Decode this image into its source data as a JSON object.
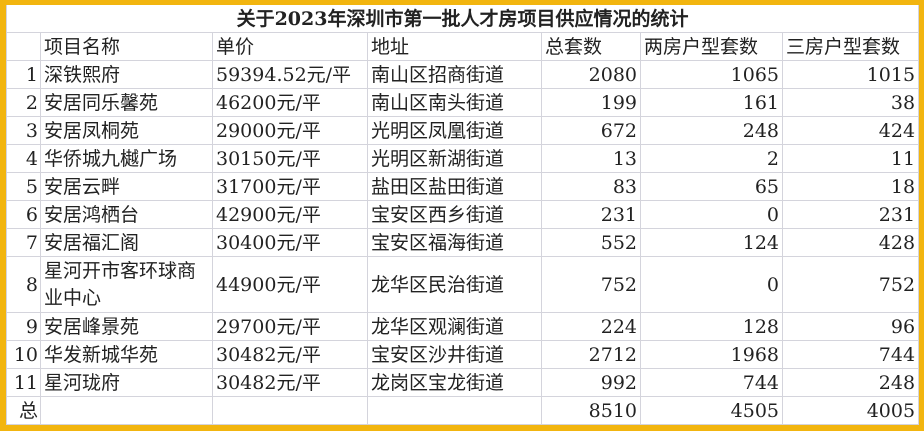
{
  "title": "关于2023年深圳市第一批人才房项目供应情况的统计",
  "headers": [
    "",
    "项目名称",
    "单价",
    "地址",
    "总套数",
    "两房户型套数",
    "三房户型套数"
  ],
  "rows": [
    {
      "no": "1",
      "name": "深铁熙府",
      "price": "59394.52元/平",
      "address": "南山区招商街道",
      "total": "2080",
      "two": "1065",
      "three": "1015"
    },
    {
      "no": "2",
      "name": "安居同乐馨苑",
      "price": "46200元/平",
      "address": "南山区南头街道",
      "total": "199",
      "two": "161",
      "three": "38"
    },
    {
      "no": "3",
      "name": "安居凤桐苑",
      "price": "29000元/平",
      "address": "光明区凤凰街道",
      "total": "672",
      "two": "248",
      "three": "424"
    },
    {
      "no": "4",
      "name": "华侨城九樾广场",
      "price": "30150元/平",
      "address": "光明区新湖街道",
      "total": "13",
      "two": "2",
      "three": "11"
    },
    {
      "no": "5",
      "name": "安居云畔",
      "price": "31700元/平",
      "address": "盐田区盐田街道",
      "total": "83",
      "two": "65",
      "three": "18"
    },
    {
      "no": "6",
      "name": "安居鸿栖台",
      "price": "42900元/平",
      "address": "宝安区西乡街道",
      "total": "231",
      "two": "0",
      "three": "231"
    },
    {
      "no": "7",
      "name": "安居福汇阁",
      "price": "30400元/平",
      "address": "宝安区福海街道",
      "total": "552",
      "two": "124",
      "three": "428"
    },
    {
      "no": "8",
      "name": "星河开市客环球商业中心",
      "price": "44900元/平",
      "address": "龙华区民治街道",
      "total": "752",
      "two": "0",
      "three": "752"
    },
    {
      "no": "9",
      "name": "安居峰景苑",
      "price": "29700元/平",
      "address": "龙华区观澜街道",
      "total": "224",
      "two": "128",
      "three": "96"
    },
    {
      "no": "10",
      "name": "华发新城华苑",
      "price": "30482元/平",
      "address": "宝安区沙井街道",
      "total": "2712",
      "two": "1968",
      "three": "744"
    },
    {
      "no": "11",
      "name": "星河珑府",
      "price": "30482元/平",
      "address": "龙岗区宝龙街道",
      "total": "992",
      "two": "744",
      "three": "248"
    }
  ],
  "totals": {
    "label": "总",
    "total": "8510",
    "two": "4505",
    "three": "4005"
  },
  "colors": {
    "frame": "#f2b50f",
    "grid": "#d4d4dc"
  }
}
